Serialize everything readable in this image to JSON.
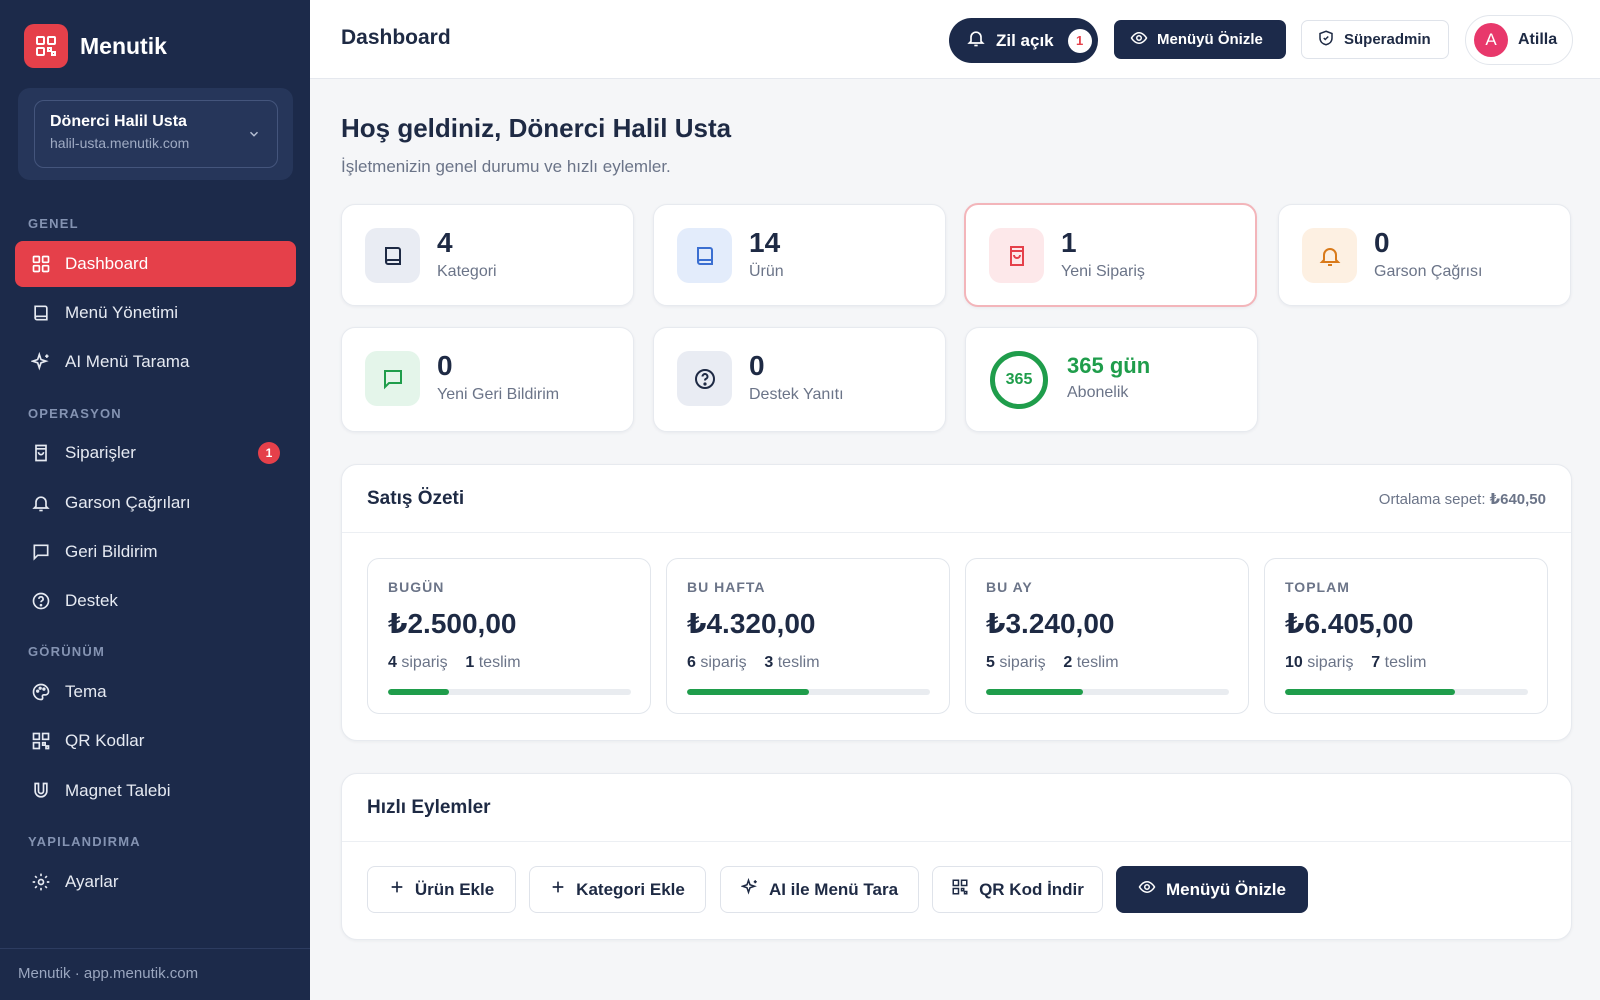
{
  "brand": {
    "name": "Menutik"
  },
  "business": {
    "name": "Dönerci Halil Usta",
    "domain": "halil-usta.menutik.com"
  },
  "nav": {
    "sections": {
      "general": "GENEL",
      "operation": "OPERASYON",
      "appearance": "GÖRÜNÜM",
      "config": "YAPILANDIRMA"
    },
    "items": [
      {
        "label": "Dashboard",
        "icon": "grid-icon",
        "active": true
      },
      {
        "label": "Menü Yönetimi",
        "icon": "book-icon"
      },
      {
        "label": "AI Menü Tarama",
        "icon": "sparkle-icon"
      },
      {
        "label": "Siparişler",
        "icon": "bag-icon",
        "badge": "1"
      },
      {
        "label": "Garson Çağrıları",
        "icon": "bell-icon"
      },
      {
        "label": "Geri Bildirim",
        "icon": "chat-icon"
      },
      {
        "label": "Destek",
        "icon": "help-icon"
      },
      {
        "label": "Tema",
        "icon": "palette-icon"
      },
      {
        "label": "QR Kodlar",
        "icon": "qr-icon"
      },
      {
        "label": "Magnet Talebi",
        "icon": "magnet-icon"
      },
      {
        "label": "Ayarlar",
        "icon": "gear-icon"
      }
    ],
    "footer": "Menutik · app.menutik.com"
  },
  "topbar": {
    "title": "Dashboard",
    "bell_label": "Zil açık",
    "bell_count": "1",
    "preview_label": "Menüyü Önizle",
    "superadmin_label": "Süperadmin",
    "user_initial": "A",
    "user_name": "Atilla"
  },
  "welcome": {
    "title": "Hoş geldiniz, Dönerci Halil Usta",
    "subtitle": "İşletmenizin genel durumu ve hızlı eylemler."
  },
  "stats": [
    {
      "value": "4",
      "label": "Kategori",
      "icon": "book-icon"
    },
    {
      "value": "14",
      "label": "Ürün",
      "icon": "book-icon"
    },
    {
      "value": "1",
      "label": "Yeni Sipariş",
      "icon": "bag-icon"
    },
    {
      "value": "0",
      "label": "Garson Çağrısı",
      "icon": "bell-icon"
    },
    {
      "value": "0",
      "label": "Yeni Geri Bildirim",
      "icon": "chat-icon"
    },
    {
      "value": "0",
      "label": "Destek Yanıtı",
      "icon": "help-icon"
    }
  ],
  "subscription": {
    "days": "365",
    "value": "365 gün",
    "label": "Abonelik"
  },
  "sales": {
    "title": "Satış Özeti",
    "avg_label": "Ortalama sepet:",
    "avg_value": "₺640,50",
    "order_word": "sipariş",
    "delivered_word": "teslim",
    "cards": [
      {
        "label": "BUGÜN",
        "amount": "₺2.500,00",
        "orders": "4",
        "delivered": "1",
        "progress": 0.25
      },
      {
        "label": "BU HAFTA",
        "amount": "₺4.320,00",
        "orders": "6",
        "delivered": "3",
        "progress": 0.5
      },
      {
        "label": "BU AY",
        "amount": "₺3.240,00",
        "orders": "5",
        "delivered": "2",
        "progress": 0.4
      },
      {
        "label": "TOPLAM",
        "amount": "₺6.405,00",
        "orders": "10",
        "delivered": "7",
        "progress": 0.7
      }
    ]
  },
  "actions": {
    "title": "Hızlı Eylemler",
    "buttons": [
      {
        "label": "Ürün Ekle",
        "icon": "plus-icon"
      },
      {
        "label": "Kategori Ekle",
        "icon": "plus-icon"
      },
      {
        "label": "AI ile Menü Tara",
        "icon": "sparkle-icon"
      },
      {
        "label": "QR Kod İndir",
        "icon": "qr-icon"
      },
      {
        "label": "Menüyü Önizle",
        "icon": "eye-icon"
      }
    ]
  },
  "colors": {
    "accent": "#e5404a",
    "sidebar": "#1c2a4a",
    "success": "#1f9d4b"
  }
}
